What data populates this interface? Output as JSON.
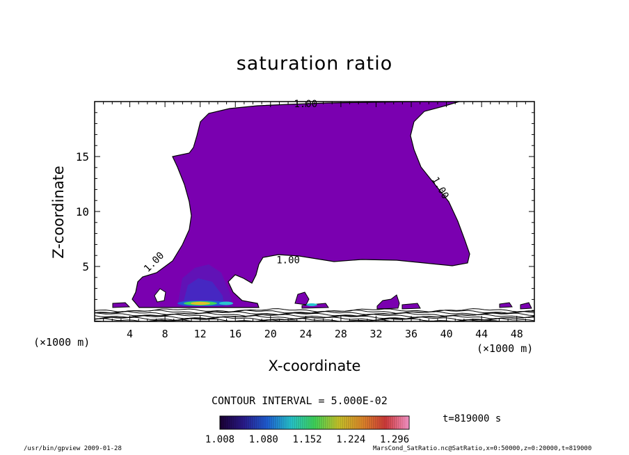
{
  "chart_data": {
    "type": "contour",
    "title": "saturation ratio",
    "xlabel": "X-coordinate",
    "ylabel": "Z-coordinate",
    "x_unit_label": "(×1000 m)",
    "xlim": [
      0,
      50
    ],
    "ylim": [
      0,
      20
    ],
    "x_ticks": [
      4,
      8,
      12,
      16,
      20,
      24,
      28,
      32,
      36,
      40,
      44,
      48
    ],
    "y_ticks": [
      5,
      10,
      15
    ],
    "contour_labels": [
      {
        "text": "1.00",
        "x": 24,
        "y": 19.5
      },
      {
        "text": "1.00",
        "x": 39,
        "y": 12
      },
      {
        "text": "1.00",
        "x": 22,
        "y": 5.3
      },
      {
        "text": "1.00",
        "x": 7,
        "y": 5.2
      }
    ],
    "contour_interval": "CONTOUR INTERVAL = 5.000E-02",
    "colorbar": {
      "min": 1.008,
      "max": 1.32,
      "tick_labels": [
        "1.008",
        "1.080",
        "1.152",
        "1.224",
        "1.296"
      ],
      "tick_values": [
        1.008,
        1.08,
        1.152,
        1.224,
        1.296
      ],
      "colors": [
        "#1a0033",
        "#2a1a8c",
        "#1f5fd6",
        "#27c6cf",
        "#3fd65a",
        "#c8c62a",
        "#e08a2a",
        "#d23a3a",
        "#ff9ad0"
      ]
    },
    "time_label": "t=819000 s",
    "fill_color": "#7a00b0",
    "footer_left": "/usr/bin/gpview  2009-01-28",
    "footer_right": "MarsCond_SatRatio.nc@SatRatio,x=0:50000,z=0:20000,t=819000"
  }
}
